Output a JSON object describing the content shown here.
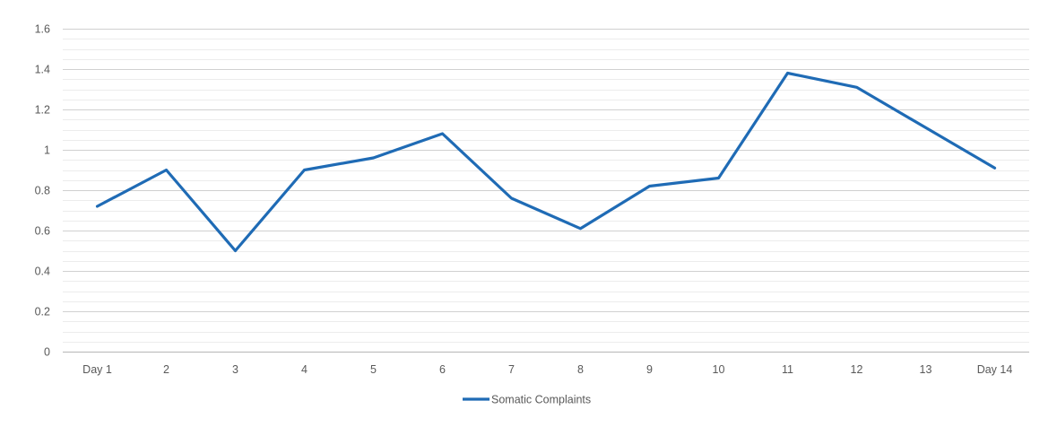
{
  "chart_data": {
    "type": "line",
    "title": "",
    "xlabel": "",
    "ylabel": "",
    "categories": [
      "Day 1",
      "2",
      "3",
      "4",
      "5",
      "6",
      "7",
      "8",
      "9",
      "10",
      "11",
      "12",
      "13",
      "Day 14"
    ],
    "series": [
      {
        "name": "Somatic Complaints",
        "color": "#1f6bb5",
        "values": [
          0.72,
          0.9,
          0.5,
          0.9,
          0.96,
          1.08,
          0.76,
          0.61,
          0.82,
          0.86,
          1.38,
          1.31,
          1.11,
          0.91
        ]
      }
    ],
    "ylim": [
      0,
      1.6
    ],
    "yticks": [
      0,
      0.2,
      0.4,
      0.6,
      0.8,
      1,
      1.2,
      1.4,
      1.6
    ],
    "ytick_labels": [
      "0",
      "0.2",
      "0.4",
      "0.6",
      "0.8",
      "1",
      "1.2",
      "1.4",
      "1.6"
    ],
    "minor_gridlines": true,
    "grid": true,
    "legend_position": "bottom"
  }
}
